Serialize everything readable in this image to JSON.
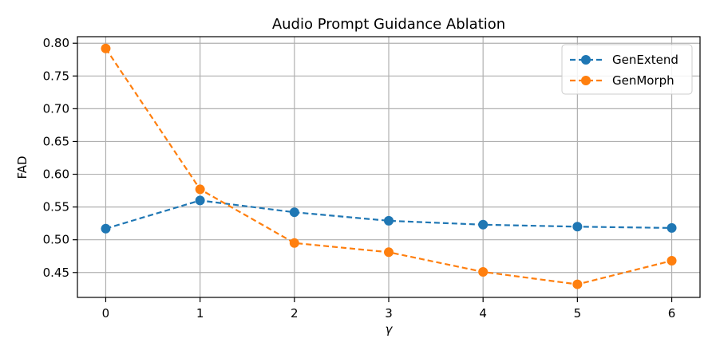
{
  "chart_data": {
    "type": "line",
    "title": "Audio Prompt Guidance Ablation",
    "xlabel": "γ",
    "ylabel": "FAD",
    "x": [
      0,
      1,
      2,
      3,
      4,
      5,
      6
    ],
    "xlim": [
      -0.3,
      6.3
    ],
    "ylim": [
      0.412,
      0.81
    ],
    "xticks": [
      "0",
      "1",
      "2",
      "3",
      "4",
      "5",
      "6"
    ],
    "yticks": [
      "0.45",
      "0.50",
      "0.55",
      "0.60",
      "0.65",
      "0.70",
      "0.75",
      "0.80"
    ],
    "grid": true,
    "legend_position": "top-right",
    "series": [
      {
        "name": "GenExtend",
        "color": "#1f77b4",
        "linestyle": "dashed",
        "marker": "circle",
        "values": [
          0.517,
          0.56,
          0.542,
          0.529,
          0.523,
          0.52,
          0.518
        ]
      },
      {
        "name": "GenMorph",
        "color": "#ff7f0e",
        "linestyle": "dashed",
        "marker": "circle",
        "values": [
          0.792,
          0.577,
          0.495,
          0.481,
          0.451,
          0.432,
          0.468
        ]
      }
    ]
  }
}
